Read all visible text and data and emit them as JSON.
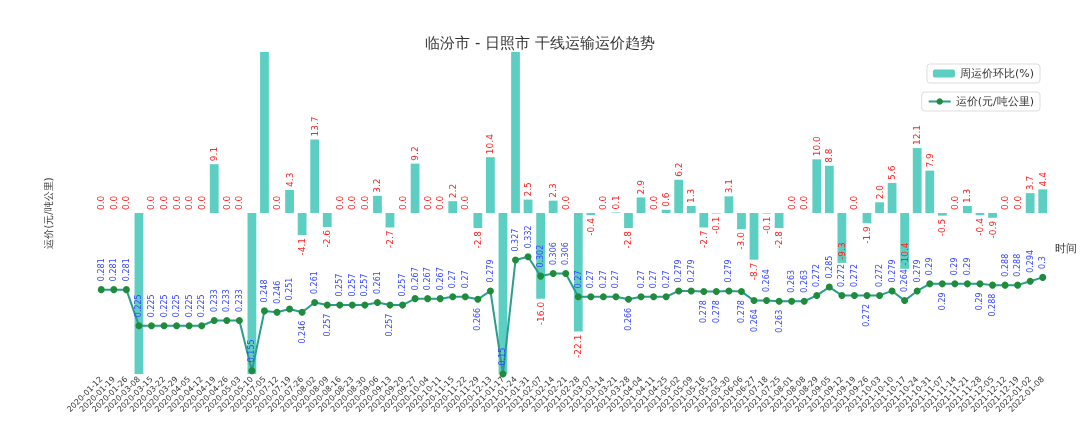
{
  "chart_data": {
    "type": "bar",
    "title": "临汾市 - 日照市 干线运输运价趋势",
    "xlabel": "时间",
    "ylabel": "运价(元/吨公里)",
    "categories": [
      "2020-01-12",
      "2020-01-19",
      "2020-01-26",
      "2020-03-08",
      "2020-03-15",
      "2020-03-22",
      "2020-03-29",
      "2020-04-05",
      "2020-04-12",
      "2020-04-19",
      "2020-04-26",
      "2020-05-03",
      "2020-05-10",
      "2020-07-05",
      "2020-07-12",
      "2020-07-19",
      "2020-07-26",
      "2020-08-02",
      "2020-08-09",
      "2020-08-16",
      "2020-08-23",
      "2020-08-30",
      "2020-09-06",
      "2020-09-13",
      "2020-09-20",
      "2020-09-27",
      "2020-10-04",
      "2020-10-11",
      "2020-11-15",
      "2020-11-22",
      "2020-11-29",
      "2020-12-13",
      "2021-01-17",
      "2021-01-24",
      "2021-01-31",
      "2021-02-07",
      "2021-02-14",
      "2021-02-21",
      "2021-02-28",
      "2021-03-07",
      "2021-03-14",
      "2021-03-21",
      "2021-03-28",
      "2021-04-04",
      "2021-04-11",
      "2021-04-25",
      "2021-05-02",
      "2021-05-09",
      "2021-05-16",
      "2021-05-23",
      "2021-05-30",
      "2021-06-06",
      "2021-06-27",
      "2021-07-18",
      "2021-07-25",
      "2021-08-01",
      "2021-08-08",
      "2021-08-29",
      "2021-09-05",
      "2021-09-12",
      "2021-09-19",
      "2021-09-26",
      "2021-10-03",
      "2021-10-10",
      "2021-10-17",
      "2021-10-24",
      "2021-10-31",
      "2021-11-07",
      "2021-11-14",
      "2021-11-21",
      "2021-11-28",
      "2021-12-05",
      "2021-12-12",
      "2021-12-19",
      "2022-01-02",
      "2022-01-08"
    ],
    "series": [
      {
        "name": "周运价环比(%)",
        "color": "#5dcfc2",
        "values": [
          0.0,
          0.0,
          0.0,
          -30,
          0.0,
          0.0,
          0.0,
          0.0,
          0.0,
          9.1,
          0.0,
          0.0,
          -30,
          30,
          0.0,
          4.3,
          -4.1,
          13.7,
          -2.6,
          0.0,
          0.0,
          0.0,
          3.2,
          -2.7,
          0.0,
          9.2,
          0.0,
          0.0,
          2.2,
          0.0,
          -2.8,
          10.4,
          -30,
          30,
          2.5,
          -16.0,
          2.3,
          0.0,
          -22.1,
          -0.4,
          0.0,
          0.1,
          -2.8,
          2.9,
          0.0,
          0.6,
          6.2,
          1.3,
          -2.7,
          -0.1,
          3.1,
          -3.0,
          -8.7,
          -0.1,
          -2.8,
          0.0,
          0.0,
          10.0,
          8.8,
          -9.3,
          0.0,
          -1.9,
          2.0,
          5.6,
          -10.4,
          12.1,
          7.9,
          -0.5,
          0.0,
          1.3,
          -0.4,
          -0.9,
          0.0,
          0.0,
          3.7,
          4.4
        ],
        "value_labels": [
          "0.0",
          "0.0",
          "0.0",
          null,
          "0.0",
          "0.0",
          "0.0",
          "0.0",
          "0.0",
          "9.1",
          "0.0",
          "0.0",
          null,
          null,
          "0.0",
          "4.3",
          "-4.1",
          "13.7",
          "-2.6",
          "0.0",
          "0.0",
          "0.0",
          "3.2",
          "-2.7",
          "0.0",
          "9.2",
          "0.0",
          "0.0",
          "2.2",
          "0.0",
          "-2.8",
          "10.4",
          null,
          null,
          "2.5",
          "-16.0",
          "2.3",
          "0.0",
          "-22.1",
          "-0.4",
          "0.0",
          "0.1",
          "-2.8",
          "2.9",
          "0.0",
          "0.6",
          "6.2",
          "1.3",
          "-2.7",
          "-0.1",
          "3.1",
          "-3.0",
          "-8.7",
          "-0.1",
          "-2.8",
          "0.0",
          "0.0",
          "10.0",
          "8.8",
          "-9.3",
          "0.0",
          "-1.9",
          "2.0",
          "5.6",
          "-10.4",
          "12.1",
          "7.9",
          "-0.5",
          "0.0",
          "1.3",
          "-0.4",
          "-0.9",
          "0.0",
          "0.0",
          "3.7",
          "4.4"
        ]
      },
      {
        "name": "运价(元/吨公里)",
        "type": "line",
        "axis": "y2",
        "color": "#2a9d8f",
        "values": [
          0.281,
          0.281,
          0.281,
          0.225,
          0.225,
          0.225,
          0.225,
          0.225,
          0.225,
          0.233,
          0.233,
          0.233,
          0.155,
          0.248,
          0.246,
          0.251,
          0.246,
          0.261,
          0.257,
          0.257,
          0.257,
          0.257,
          0.261,
          0.257,
          0.257,
          0.267,
          0.267,
          0.267,
          0.27,
          0.27,
          0.266,
          0.279,
          0.15,
          0.327,
          0.332,
          0.302,
          0.306,
          0.306,
          0.27,
          0.27,
          0.27,
          0.27,
          0.266,
          0.27,
          0.27,
          0.27,
          0.279,
          0.279,
          0.278,
          0.278,
          0.279,
          0.278,
          0.264,
          0.264,
          0.263,
          0.263,
          0.263,
          0.272,
          0.285,
          0.272,
          0.272,
          0.272,
          0.272,
          0.279,
          0.264,
          0.279,
          0.29,
          0.29,
          0.29,
          0.29,
          0.29,
          0.288,
          0.288,
          0.288,
          0.294,
          0.3
        ]
      }
    ],
    "ylim": [
      -30,
      30
    ],
    "y2lim": [
      0.15,
      0.65
    ],
    "data_labels": true,
    "marker": "circle",
    "legend": "top right",
    "tick_labels": "x",
    "grid": false
  }
}
